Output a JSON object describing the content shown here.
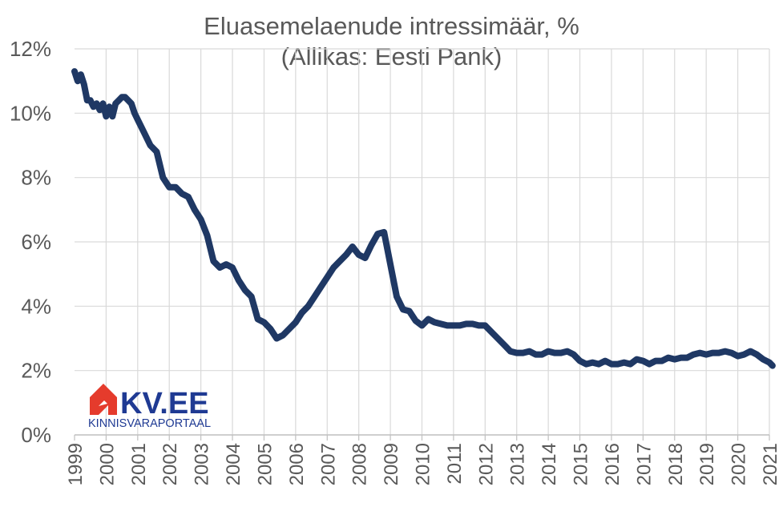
{
  "chart_data": {
    "type": "line",
    "title": "Eluasemelaenude intressimäär, %",
    "subtitle": "(Allikas: Eesti Pank)",
    "xlabel": "",
    "ylabel": "",
    "ylim": [
      0,
      12
    ],
    "xlim": [
      1999,
      2021
    ],
    "grid": true,
    "legend": "none",
    "y_ticks": [
      "0%",
      "2%",
      "4%",
      "6%",
      "8%",
      "10%",
      "12%"
    ],
    "x_ticks": [
      "1999",
      "2000",
      "2001",
      "2002",
      "2003",
      "2004",
      "2005",
      "2006",
      "2007",
      "2008",
      "2009",
      "2010",
      "2011",
      "2012",
      "2013",
      "2014",
      "2015",
      "2016",
      "2017",
      "2018",
      "2019",
      "2020",
      "2021"
    ],
    "series": [
      {
        "line_color": "#1f3864",
        "x": [
          1999.0,
          1999.1,
          1999.2,
          1999.3,
          1999.4,
          1999.5,
          1999.6,
          1999.7,
          1999.8,
          1999.9,
          2000.0,
          2000.1,
          2000.2,
          2000.3,
          2000.4,
          2000.5,
          2000.6,
          2000.8,
          2000.9,
          2001.0,
          2001.2,
          2001.4,
          2001.6,
          2001.8,
          2002.0,
          2002.2,
          2002.4,
          2002.6,
          2002.8,
          2003.0,
          2003.2,
          2003.4,
          2003.6,
          2003.8,
          2004.0,
          2004.2,
          2004.4,
          2004.6,
          2004.8,
          2005.0,
          2005.2,
          2005.4,
          2005.6,
          2005.8,
          2006.0,
          2006.2,
          2006.4,
          2006.6,
          2006.8,
          2007.0,
          2007.2,
          2007.4,
          2007.6,
          2007.8,
          2008.0,
          2008.2,
          2008.4,
          2008.6,
          2008.8,
          2009.0,
          2009.2,
          2009.4,
          2009.6,
          2009.8,
          2010.0,
          2010.2,
          2010.4,
          2010.6,
          2010.8,
          2011.0,
          2011.2,
          2011.4,
          2011.6,
          2011.8,
          2012.0,
          2012.2,
          2012.4,
          2012.6,
          2012.8,
          2013.0,
          2013.2,
          2013.4,
          2013.6,
          2013.8,
          2014.0,
          2014.2,
          2014.4,
          2014.6,
          2014.8,
          2015.0,
          2015.2,
          2015.4,
          2015.6,
          2015.8,
          2016.0,
          2016.2,
          2016.4,
          2016.6,
          2016.8,
          2017.0,
          2017.2,
          2017.4,
          2017.6,
          2017.8,
          2018.0,
          2018.2,
          2018.4,
          2018.6,
          2018.8,
          2019.0,
          2019.2,
          2019.4,
          2019.6,
          2019.8,
          2020.0,
          2020.2,
          2020.4,
          2020.6,
          2020.8,
          2021.0,
          2021.1
        ],
        "values": [
          11.3,
          11.0,
          11.2,
          10.9,
          10.4,
          10.4,
          10.2,
          10.3,
          10.1,
          10.3,
          9.9,
          10.2,
          9.9,
          10.3,
          10.4,
          10.5,
          10.5,
          10.3,
          10.0,
          9.8,
          9.4,
          9.0,
          8.8,
          8.0,
          7.7,
          7.7,
          7.5,
          7.4,
          7.0,
          6.7,
          6.2,
          5.4,
          5.2,
          5.3,
          5.2,
          4.8,
          4.5,
          4.3,
          3.6,
          3.5,
          3.3,
          3.0,
          3.1,
          3.3,
          3.5,
          3.8,
          4.0,
          4.3,
          4.6,
          4.9,
          5.2,
          5.4,
          5.6,
          5.85,
          5.6,
          5.5,
          5.9,
          6.25,
          6.3,
          5.3,
          4.3,
          3.9,
          3.85,
          3.55,
          3.4,
          3.6,
          3.5,
          3.45,
          3.4,
          3.4,
          3.4,
          3.45,
          3.45,
          3.4,
          3.4,
          3.2,
          3.0,
          2.8,
          2.6,
          2.55,
          2.55,
          2.6,
          2.5,
          2.5,
          2.6,
          2.55,
          2.55,
          2.6,
          2.5,
          2.3,
          2.2,
          2.25,
          2.2,
          2.3,
          2.2,
          2.2,
          2.25,
          2.2,
          2.35,
          2.3,
          2.2,
          2.3,
          2.3,
          2.4,
          2.35,
          2.4,
          2.4,
          2.5,
          2.55,
          2.5,
          2.55,
          2.55,
          2.6,
          2.55,
          2.45,
          2.5,
          2.6,
          2.5,
          2.35,
          2.25,
          2.15
        ]
      }
    ]
  },
  "logo": {
    "name": "KV.EE",
    "tagline": "KINNISVARAPORTAAL",
    "icon": "house-icon",
    "red": "#e53b2c",
    "navy": "#1f3a93"
  }
}
